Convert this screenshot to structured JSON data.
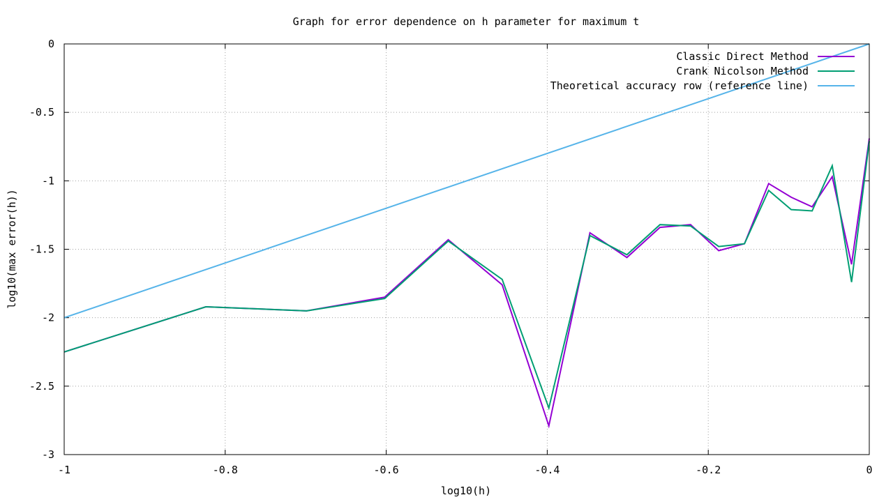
{
  "chart_data": {
    "type": "line",
    "title": "Graph for error dependence on h parameter for maximum t",
    "xlabel": "log10(h)",
    "ylabel": "log10(max error(h))",
    "xlim": [
      -1,
      0
    ],
    "ylim": [
      -3,
      0
    ],
    "xticks": [
      -1,
      -0.8,
      -0.6,
      -0.4,
      -0.2,
      0
    ],
    "xtick_labels": [
      "-1",
      "-0.8",
      "-0.6",
      "-0.4",
      "-0.2",
      "0"
    ],
    "yticks": [
      0,
      -0.5,
      -1,
      -1.5,
      -2,
      -2.5,
      -3
    ],
    "ytick_labels": [
      "0",
      "-0.5",
      "-1",
      "-1.5",
      "-2",
      "-2.5",
      "-3"
    ],
    "grid": true,
    "legend_position": "top-right",
    "series": [
      {
        "name": "Classic Direct Method",
        "color": "#9400d3",
        "x": [
          -1,
          -0.824,
          -0.699,
          -0.602,
          -0.523,
          -0.456,
          -0.398,
          -0.347,
          -0.301,
          -0.26,
          -0.222,
          -0.187,
          -0.155,
          -0.125,
          -0.097,
          -0.071,
          -0.046,
          -0.022,
          0
        ],
        "y": [
          -2.25,
          -1.92,
          -1.95,
          -1.85,
          -1.43,
          -1.76,
          -2.79,
          -1.38,
          -1.56,
          -1.34,
          -1.32,
          -1.51,
          -1.46,
          -1.02,
          -1.12,
          -1.19,
          -0.97,
          -1.61,
          -0.69
        ]
      },
      {
        "name": "Crank Nicolson Method",
        "color": "#009e73",
        "x": [
          -1,
          -0.824,
          -0.699,
          -0.602,
          -0.523,
          -0.456,
          -0.398,
          -0.347,
          -0.301,
          -0.26,
          -0.222,
          -0.187,
          -0.155,
          -0.125,
          -0.097,
          -0.071,
          -0.046,
          -0.022,
          0
        ],
        "y": [
          -2.25,
          -1.92,
          -1.95,
          -1.86,
          -1.44,
          -1.72,
          -2.66,
          -1.4,
          -1.54,
          -1.32,
          -1.33,
          -1.48,
          -1.46,
          -1.07,
          -1.21,
          -1.22,
          -0.89,
          -1.74,
          -0.71
        ]
      },
      {
        "name": "Theoretical accuracy row (reference line)",
        "color": "#56b4e9",
        "x": [
          -1,
          0
        ],
        "y": [
          -2,
          0
        ]
      }
    ]
  }
}
